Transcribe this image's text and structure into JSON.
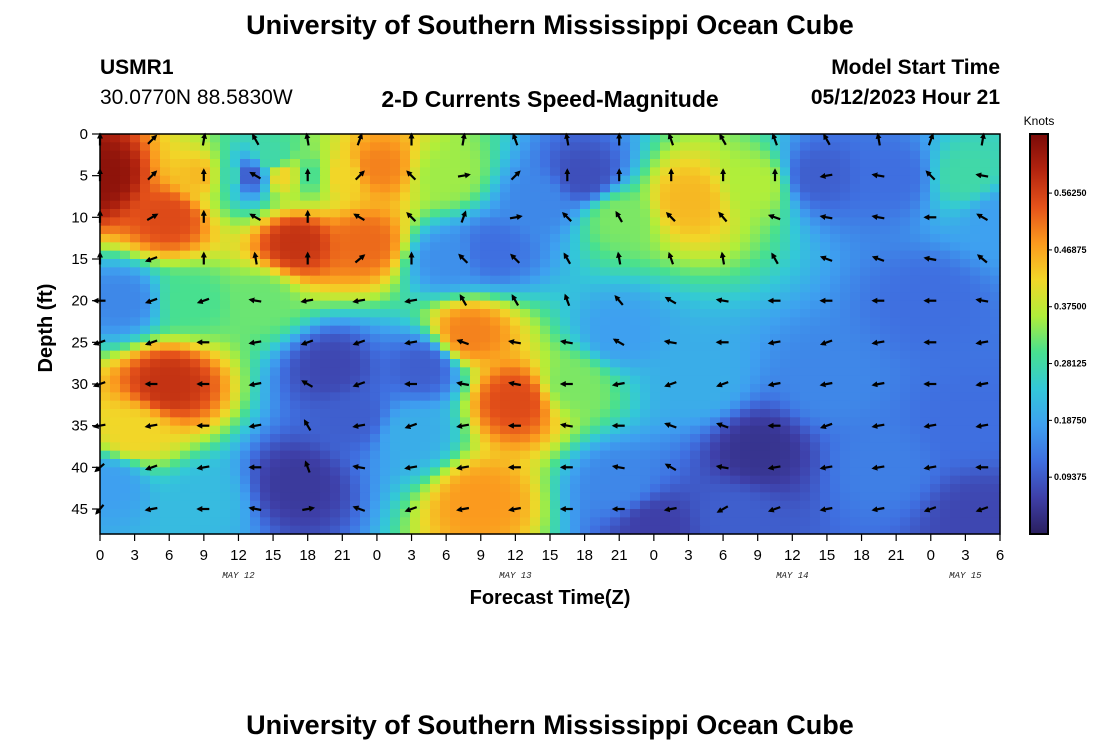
{
  "header": {
    "title": "University of Southern Mississippi Ocean Cube",
    "station_name": "USMR1",
    "coordinates": "30.0770N  88.5830W",
    "plot_title": "2-D Currents Speed-Magnitude",
    "model_start_label": "Model Start Time",
    "model_start_value": "05/12/2023 Hour 21"
  },
  "footer": {
    "title": "University of Southern Mississippi Ocean Cube"
  },
  "colors": {
    "scale": [
      "#2a1f5e",
      "#3e3fa8",
      "#3f6fe0",
      "#3ea0f0",
      "#33c8d8",
      "#48e08f",
      "#b0ee3a",
      "#f2d628",
      "#fb9a1e",
      "#e5521a",
      "#b3240f",
      "#7a0a08"
    ]
  },
  "chart_data": {
    "type": "heatmap",
    "subtype": "current-speed-with-direction-arrows",
    "xlabel": "Forecast Time(Z)",
    "ylabel": "Depth (ft)",
    "colorbar_title": "Knots",
    "colorbar_ticks": [
      "0.56250",
      "0.46875",
      "0.37500",
      "0.28125",
      "0.18750",
      "0.09375"
    ],
    "colorbar_tick_values": [
      0.5625,
      0.46875,
      0.375,
      0.28125,
      0.1875,
      0.09375
    ],
    "colorbar_range": [
      0,
      0.66
    ],
    "x_hours_since_start": [
      0,
      78
    ],
    "x_tick_labels": [
      "0",
      "3",
      "6",
      "9",
      "12",
      "15",
      "18",
      "21",
      "0",
      "3",
      "6",
      "9",
      "12",
      "15",
      "18",
      "21",
      "0",
      "3",
      "6",
      "9",
      "12",
      "15",
      "18",
      "21",
      "0",
      "3",
      "6"
    ],
    "date_labels": [
      {
        "text": "MAY 12",
        "at_tick": 4
      },
      {
        "text": "MAY 13",
        "at_tick": 12
      },
      {
        "text": "MAY 14",
        "at_tick": 20
      },
      {
        "text": "MAY 15",
        "at_tick": 25
      }
    ],
    "y_ticks": [
      "0",
      "5",
      "10",
      "15",
      "20",
      "25",
      "30",
      "35",
      "40",
      "45"
    ],
    "y_tick_values": [
      0,
      5,
      10,
      15,
      20,
      25,
      30,
      35,
      40,
      45
    ],
    "ylim": [
      0,
      48
    ],
    "y_inverted": true,
    "grid": false,
    "speed_anchors": [
      {
        "t": 0,
        "d": 5,
        "v": 0.64
      },
      {
        "t": 6,
        "d": 10,
        "v": 0.55
      },
      {
        "t": 9,
        "d": 5,
        "v": 0.45
      },
      {
        "t": 11,
        "d": 5,
        "v": 0.28
      },
      {
        "t": 13,
        "d": 5,
        "v": 0.1
      },
      {
        "t": 15,
        "d": 3,
        "v": 0.28
      },
      {
        "t": 16,
        "d": 5,
        "v": 0.42
      },
      {
        "t": 18,
        "d": 5,
        "v": 0.3
      },
      {
        "t": 21,
        "d": 5,
        "v": 0.42
      },
      {
        "t": 24,
        "d": 4,
        "v": 0.5
      },
      {
        "t": 30,
        "d": 5,
        "v": 0.35
      },
      {
        "t": 17,
        "d": 13,
        "v": 0.58
      },
      {
        "t": 23,
        "d": 13,
        "v": 0.52
      },
      {
        "t": 30,
        "d": 15,
        "v": 0.16
      },
      {
        "t": 34,
        "d": 14,
        "v": 0.12
      },
      {
        "t": 38,
        "d": 8,
        "v": 0.15
      },
      {
        "t": 42,
        "d": 5,
        "v": 0.08
      },
      {
        "t": 45,
        "d": 10,
        "v": 0.33
      },
      {
        "t": 51,
        "d": 8,
        "v": 0.45
      },
      {
        "t": 57,
        "d": 6,
        "v": 0.36
      },
      {
        "t": 62,
        "d": 5,
        "v": 0.1
      },
      {
        "t": 69,
        "d": 5,
        "v": 0.12
      },
      {
        "t": 75,
        "d": 5,
        "v": 0.28
      },
      {
        "t": 72,
        "d": 20,
        "v": 0.12
      },
      {
        "t": 78,
        "d": 10,
        "v": 0.18
      },
      {
        "t": 2,
        "d": 20,
        "v": 0.15
      },
      {
        "t": 8,
        "d": 20,
        "v": 0.3
      },
      {
        "t": 14,
        "d": 20,
        "v": 0.32
      },
      {
        "t": 6,
        "d": 30,
        "v": 0.58
      },
      {
        "t": 3,
        "d": 36,
        "v": 0.42
      },
      {
        "t": 1,
        "d": 42,
        "v": 0.18
      },
      {
        "t": 9,
        "d": 44,
        "v": 0.22
      },
      {
        "t": 20,
        "d": 28,
        "v": 0.07
      },
      {
        "t": 22,
        "d": 34,
        "v": 0.1
      },
      {
        "t": 17,
        "d": 42,
        "v": 0.05
      },
      {
        "t": 27,
        "d": 36,
        "v": 0.2
      },
      {
        "t": 28,
        "d": 28,
        "v": 0.1
      },
      {
        "t": 32,
        "d": 24,
        "v": 0.5
      },
      {
        "t": 36,
        "d": 32,
        "v": 0.55
      },
      {
        "t": 33,
        "d": 44,
        "v": 0.48
      },
      {
        "t": 41,
        "d": 30,
        "v": 0.33
      },
      {
        "t": 45,
        "d": 24,
        "v": 0.18
      },
      {
        "t": 45,
        "d": 42,
        "v": 0.15
      },
      {
        "t": 52,
        "d": 30,
        "v": 0.2
      },
      {
        "t": 57,
        "d": 38,
        "v": 0.04
      },
      {
        "t": 55,
        "d": 46,
        "v": 0.1
      },
      {
        "t": 63,
        "d": 30,
        "v": 0.15
      },
      {
        "t": 68,
        "d": 40,
        "v": 0.14
      },
      {
        "t": 75,
        "d": 35,
        "v": 0.12
      },
      {
        "t": 76,
        "d": 46,
        "v": 0.07
      },
      {
        "t": 48,
        "d": 47,
        "v": 0.06
      }
    ],
    "arrows": {
      "times": [
        0,
        4.5,
        9,
        13.5,
        18,
        22.5,
        27,
        31.5,
        36,
        40.5,
        45,
        49.5,
        54,
        58.5,
        63,
        67.5,
        72,
        76.5
      ],
      "depths": [
        0,
        5,
        10,
        15,
        20,
        25,
        30,
        35,
        40,
        45
      ],
      "grid_deg": [
        [
          90,
          45,
          80,
          120,
          100,
          70,
          90,
          80,
          110,
          100,
          90,
          110,
          120,
          110,
          120,
          100,
          70,
          80
        ],
        [
          90,
          45,
          90,
          150,
          90,
          45,
          135,
          10,
          45,
          90,
          90,
          90,
          90,
          90,
          190,
          170,
          135,
          170
        ],
        [
          90,
          30,
          90,
          150,
          90,
          150,
          135,
          70,
          10,
          135,
          120,
          135,
          130,
          160,
          170,
          170,
          180,
          150
        ],
        [
          90,
          200,
          90,
          100,
          90,
          40,
          90,
          135,
          135,
          120,
          100,
          110,
          100,
          120,
          160,
          160,
          170,
          140
        ],
        [
          180,
          200,
          200,
          170,
          190,
          190,
          190,
          120,
          120,
          110,
          130,
          150,
          170,
          180,
          180,
          180,
          180,
          170
        ],
        [
          200,
          200,
          180,
          190,
          200,
          200,
          190,
          160,
          170,
          170,
          150,
          170,
          180,
          190,
          200,
          190,
          180,
          190
        ],
        [
          200,
          180,
          180,
          190,
          150,
          200,
          180,
          170,
          170,
          180,
          190,
          200,
          200,
          190,
          190,
          190,
          180,
          190
        ],
        [
          190,
          190,
          180,
          190,
          120,
          190,
          200,
          190,
          180,
          170,
          180,
          160,
          160,
          180,
          200,
          190,
          190,
          190
        ],
        [
          220,
          200,
          190,
          180,
          110,
          170,
          190,
          190,
          180,
          180,
          170,
          150,
          170,
          190,
          190,
          190,
          190,
          180
        ],
        [
          230,
          190,
          180,
          170,
          10,
          160,
          200,
          190,
          190,
          180,
          180,
          190,
          210,
          200,
          190,
          190,
          200,
          200
        ]
      ]
    }
  }
}
